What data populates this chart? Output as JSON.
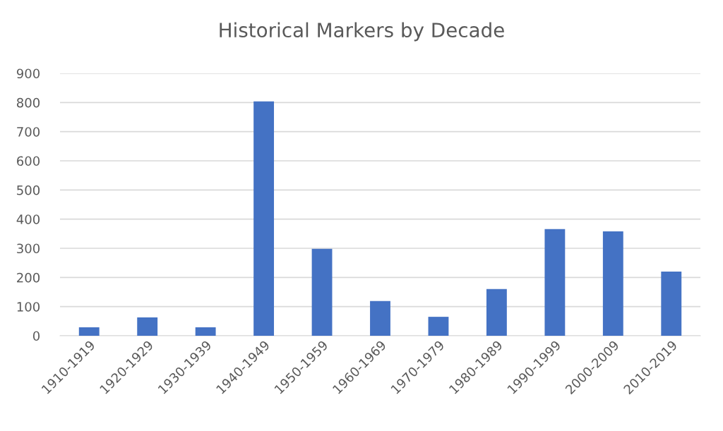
{
  "chart_data": {
    "type": "bar",
    "title": "Historical Markers by Decade",
    "categories": [
      "1910-1919",
      "1920-1929",
      "1930-1939",
      "1940-1949",
      "1950-1959",
      "1960-1969",
      "1970-1979",
      "1980-1989",
      "1990-1999",
      "2000-2009",
      "2010-2019"
    ],
    "values": [
      29,
      63,
      29,
      804,
      298,
      119,
      65,
      160,
      366,
      358,
      220
    ],
    "color": "#4472c4",
    "ylim": [
      0,
      900
    ],
    "yticks": [
      0,
      100,
      200,
      300,
      400,
      500,
      600,
      700,
      800,
      900
    ],
    "grid": "y",
    "legend": false
  }
}
